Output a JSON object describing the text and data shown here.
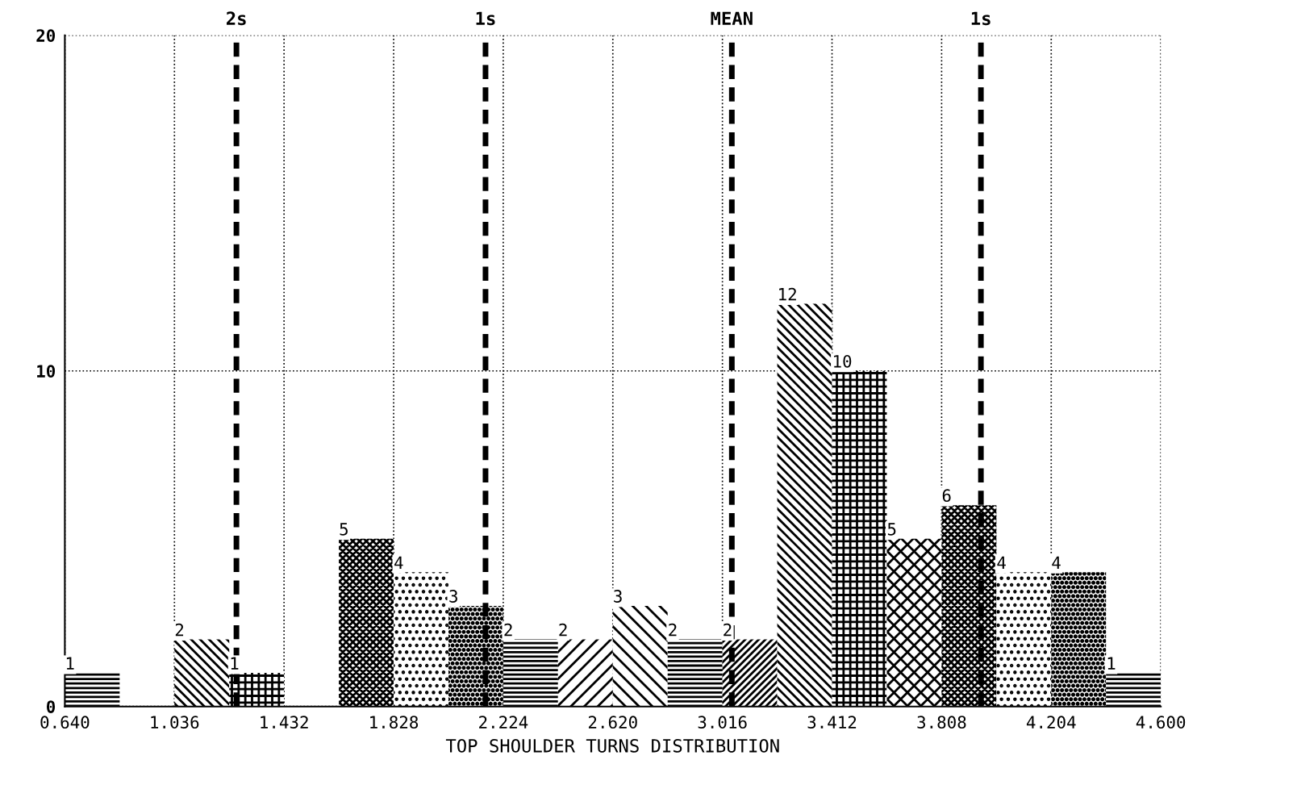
{
  "chart_data": {
    "type": "histogram",
    "xlabel": "TOP SHOULDER TURNS DISTRIBUTION",
    "bins": [
      0.64,
      0.838,
      1.036,
      1.234,
      1.432,
      1.63,
      1.828,
      2.026,
      2.224,
      2.422,
      2.62,
      2.818,
      3.016,
      3.214,
      3.412,
      3.61,
      3.808,
      4.006,
      4.204,
      4.402,
      4.6
    ],
    "values": [
      1,
      0,
      2,
      1,
      0,
      5,
      4,
      3,
      2,
      2,
      3,
      2,
      2,
      12,
      10,
      5,
      6,
      4,
      4,
      1
    ],
    "color": "#000000",
    "value_labels": [
      "1",
      null,
      "2",
      "1",
      null,
      "5",
      "4",
      "3",
      "2",
      "2",
      "3",
      "2",
      "2",
      "12",
      "10",
      "5",
      "6",
      "4",
      "4",
      "1"
    ],
    "xlim": [
      0.64,
      4.6
    ],
    "xticks": [
      {
        "value": 0.64,
        "label": "0.640"
      },
      {
        "value": 1.036,
        "label": "1.036"
      },
      {
        "value": 1.432,
        "label": "1.432"
      },
      {
        "value": 1.828,
        "label": "1.828"
      },
      {
        "value": 2.224,
        "label": "2.224"
      },
      {
        "value": 2.62,
        "label": "2.620"
      },
      {
        "value": 3.016,
        "label": "3.016"
      },
      {
        "value": 3.412,
        "label": "3.412"
      },
      {
        "value": 3.808,
        "label": "3.808"
      },
      {
        "value": 4.204,
        "label": "4.204"
      },
      {
        "value": 4.6,
        "label": "4.600"
      }
    ],
    "ylim": [
      0,
      20
    ],
    "yticks": [
      0,
      10,
      20
    ],
    "grid": true,
    "ref_lines": [
      {
        "axis": "x",
        "value": 1.26,
        "label": "2s",
        "line_style": "dashed",
        "color": "#000000"
      },
      {
        "axis": "x",
        "value": 2.16,
        "label": "1s",
        "line_style": "dashed",
        "color": "#000000"
      },
      {
        "axis": "x",
        "value": 3.05,
        "label": "MEAN",
        "line_style": "dashed",
        "color": "#000000"
      },
      {
        "axis": "x",
        "value": 3.95,
        "label": "1s",
        "line_style": "dashed",
        "color": "#000000"
      }
    ]
  }
}
